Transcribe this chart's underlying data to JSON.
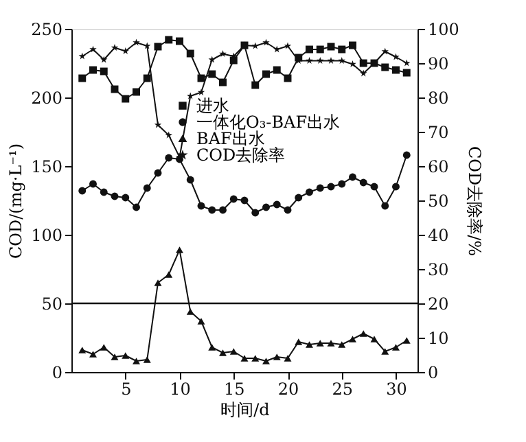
{
  "chart_data": {
    "type": "line",
    "xlabel": "时间/d",
    "ylabel": "COD/(mg·L⁻¹)",
    "y2label": "COD去除率/%",
    "x": [
      1,
      2,
      3,
      4,
      5,
      6,
      7,
      8,
      9,
      10,
      11,
      12,
      13,
      14,
      15,
      16,
      17,
      18,
      19,
      20,
      21,
      22,
      23,
      24,
      25,
      26,
      27,
      28,
      29,
      30,
      31
    ],
    "series": [
      {
        "name": "进水",
        "color": "#111111",
        "marker": "square",
        "values": [
          214,
          220,
          219,
          206,
          199,
          204,
          214,
          237,
          242,
          241,
          232,
          214,
          217,
          211,
          227,
          238,
          209,
          217,
          220,
          214,
          229,
          235,
          235,
          237,
          235,
          238,
          225,
          225,
          222,
          220,
          218
        ]
      },
      {
        "name": "一体化O₃-BAF出水",
        "color": "#111111",
        "marker": "circle",
        "values": [
          132,
          137,
          131,
          128,
          127,
          120,
          134,
          145,
          156,
          155,
          140,
          121,
          118,
          118,
          126,
          125,
          116,
          120,
          122,
          118,
          127,
          131,
          134,
          135,
          137,
          142,
          138,
          135,
          121,
          135,
          158
        ]
      },
      {
        "name": "BAF出水",
        "color": "#111111",
        "marker": "triangle",
        "values": [
          16,
          13,
          18,
          11,
          12,
          8,
          9,
          65,
          71,
          89,
          44,
          37,
          18,
          14,
          15,
          10,
          10,
          8,
          11,
          10,
          22,
          20,
          21,
          21,
          20,
          24,
          28,
          24,
          15,
          18,
          23
        ]
      },
      {
        "name": "COD去除率",
        "color": "#111111",
        "marker": "star",
        "axis": "y2",
        "values": [
          92,
          94,
          91,
          94.5,
          93.5,
          96,
          95,
          72,
          69,
          62.6,
          80.4,
          81.5,
          91,
          92.7,
          92,
          95.2,
          95,
          96,
          94,
          95,
          90.7,
          90.7,
          90.7,
          90.7,
          90.7,
          89.7,
          87,
          90,
          93.4,
          91.8,
          90
        ]
      }
    ],
    "xlim": [
      0,
      32
    ],
    "xticks": [
      5,
      10,
      15,
      20,
      25,
      30
    ],
    "ylim": [
      0,
      250
    ],
    "yticks": [
      0,
      50,
      100,
      150,
      200,
      250
    ],
    "y2lim": [
      0,
      100
    ],
    "y2ticks": [
      0,
      10,
      20,
      30,
      40,
      50,
      60,
      70,
      80,
      90,
      100
    ],
    "ref_lines": [
      {
        "axis": "y",
        "value": 50,
        "color": "#111111",
        "line_style": "solid"
      }
    ],
    "grid": false,
    "legend": "right",
    "line_style": "solid"
  }
}
